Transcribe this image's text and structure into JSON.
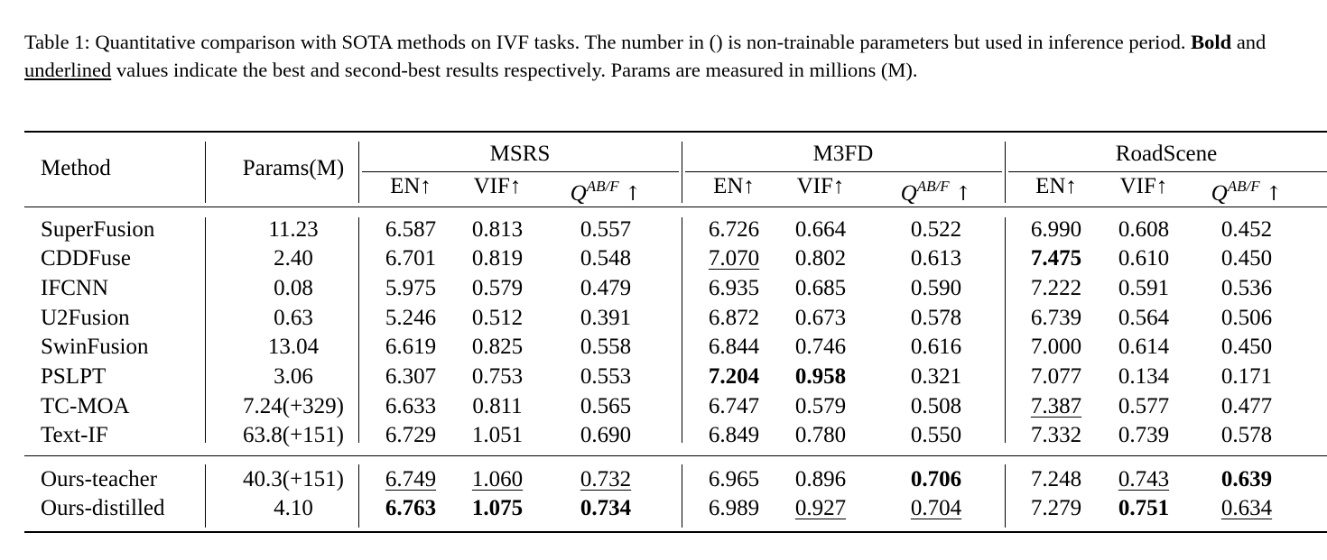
{
  "caption": {
    "part1": "Table 1: Quantitative comparison with SOTA methods on IVF tasks.  The number in () is non-trainable parameters but used in inference period. ",
    "bold_word": "Bold",
    "mid": " and ",
    "underlined_word": "underlined",
    "part2": " values indicate the best and second-best results respectively. Params are measured in millions (M)."
  },
  "table": {
    "header": {
      "method": "Method",
      "params": "Params(M)",
      "groups": [
        "MSRS",
        "M3FD",
        "RoadScene"
      ],
      "en": "EN↑",
      "vif": "VIF↑",
      "q_base": "Q",
      "q_sup": "AB/F",
      "q_arrow": "↑"
    },
    "rows": [
      {
        "method": "SuperFusion",
        "params": "11.23",
        "values": [
          "6.587",
          "0.813",
          "0.557",
          "6.726",
          "0.664",
          "0.522",
          "6.990",
          "0.608",
          "0.452"
        ],
        "bold": [],
        "underline": []
      },
      {
        "method": "CDDFuse",
        "params": "2.40",
        "values": [
          "6.701",
          "0.819",
          "0.548",
          "7.070",
          "0.802",
          "0.613",
          "7.475",
          "0.610",
          "0.450"
        ],
        "bold": [
          6
        ],
        "underline": [
          3
        ]
      },
      {
        "method": "IFCNN",
        "params": "0.08",
        "values": [
          "5.975",
          "0.579",
          "0.479",
          "6.935",
          "0.685",
          "0.590",
          "7.222",
          "0.591",
          "0.536"
        ],
        "bold": [],
        "underline": []
      },
      {
        "method": "U2Fusion",
        "params": "0.63",
        "values": [
          "5.246",
          "0.512",
          "0.391",
          "6.872",
          "0.673",
          "0.578",
          "6.739",
          "0.564",
          "0.506"
        ],
        "bold": [],
        "underline": []
      },
      {
        "method": "SwinFusion",
        "params": "13.04",
        "values": [
          "6.619",
          "0.825",
          "0.558",
          "6.844",
          "0.746",
          "0.616",
          "7.000",
          "0.614",
          "0.450"
        ],
        "bold": [],
        "underline": []
      },
      {
        "method": "PSLPT",
        "params": "3.06",
        "values": [
          "6.307",
          "0.753",
          "0.553",
          "7.204",
          "0.958",
          "0.321",
          "7.077",
          "0.134",
          "0.171"
        ],
        "bold": [
          3,
          4
        ],
        "underline": []
      },
      {
        "method": "TC-MOA",
        "params": "7.24(+329)",
        "values": [
          "6.633",
          "0.811",
          "0.565",
          "6.747",
          "0.579",
          "0.508",
          "7.387",
          "0.577",
          "0.477"
        ],
        "bold": [],
        "underline": [
          6
        ]
      },
      {
        "method": "Text-IF",
        "params": "63.8(+151)",
        "values": [
          "6.729",
          "1.051",
          "0.690",
          "6.849",
          "0.780",
          "0.550",
          "7.332",
          "0.739",
          "0.578"
        ],
        "bold": [],
        "underline": []
      },
      {
        "method": "Ours-teacher",
        "params": "40.3(+151)",
        "values": [
          "6.749",
          "1.060",
          "0.732",
          "6.965",
          "0.896",
          "0.706",
          "7.248",
          "0.743",
          "0.639"
        ],
        "bold": [
          5,
          8
        ],
        "underline": [
          0,
          1,
          2,
          7
        ]
      },
      {
        "method": "Ours-distilled",
        "params": "4.10",
        "values": [
          "6.763",
          "1.075",
          "0.734",
          "6.989",
          "0.927",
          "0.704",
          "7.279",
          "0.751",
          "0.634"
        ],
        "bold": [
          0,
          1,
          2,
          7
        ],
        "underline": [
          4,
          5,
          8
        ]
      }
    ]
  }
}
